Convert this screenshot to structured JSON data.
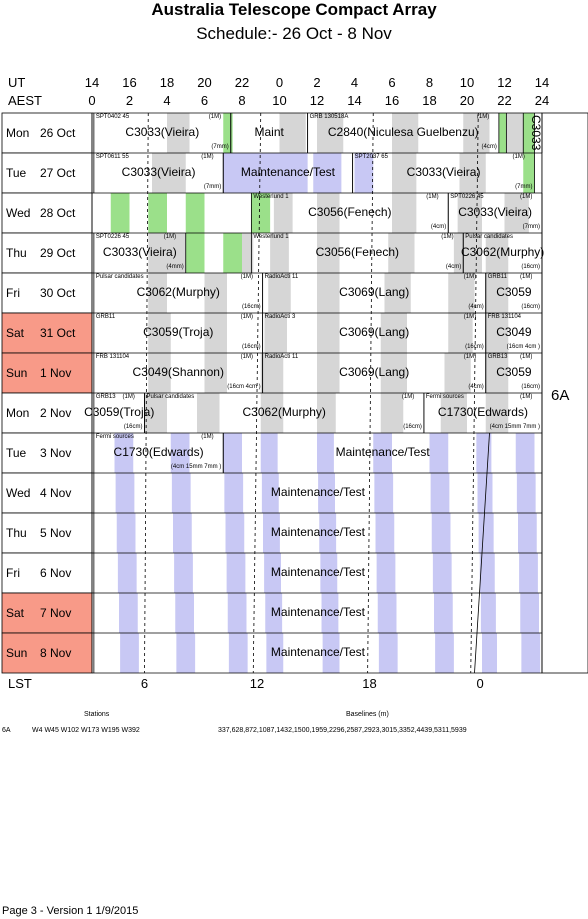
{
  "title": "Australia Telescope Compact Array",
  "subtitle": "Schedule:- 26 Oct - 8  Nov",
  "axis": {
    "ut_label": "UT",
    "aest_label": "AEST",
    "lst_label": "LST",
    "ut_ticks": [
      "14",
      "16",
      "18",
      "20",
      "22",
      "0",
      "2",
      "4",
      "6",
      "8",
      "10",
      "12",
      "14"
    ],
    "aest_ticks": [
      "0",
      "2",
      "4",
      "6",
      "8",
      "10",
      "12",
      "14",
      "16",
      "18",
      "20",
      "22",
      "24"
    ],
    "lst_ticks": [
      "6",
      "12",
      "18",
      "0"
    ]
  },
  "days": [
    {
      "wd": "Mon",
      "date": "26 Oct",
      "weekend": false
    },
    {
      "wd": "Tue",
      "date": "27 Oct",
      "weekend": false
    },
    {
      "wd": "Wed",
      "date": "28 Oct",
      "weekend": false
    },
    {
      "wd": "Thu",
      "date": "29 Oct",
      "weekend": false
    },
    {
      "wd": "Fri",
      "date": "30 Oct",
      "weekend": false
    },
    {
      "wd": "Sat",
      "date": "31 Oct",
      "weekend": true
    },
    {
      "wd": "Sun",
      "date": " 1  Nov",
      "weekend": true
    },
    {
      "wd": "Mon",
      "date": " 2  Nov",
      "weekend": false
    },
    {
      "wd": "Tue",
      "date": " 3  Nov",
      "weekend": false
    },
    {
      "wd": "Wed",
      "date": " 4  Nov",
      "weekend": false
    },
    {
      "wd": "Thu",
      "date": " 5  Nov",
      "weekend": false
    },
    {
      "wd": "Fri",
      "date": " 6  Nov",
      "weekend": false
    },
    {
      "wd": "Sat",
      "date": " 7  Nov",
      "weekend": true
    },
    {
      "wd": "Sun",
      "date": " 8  Nov",
      "weekend": true
    }
  ],
  "blocks": [
    {
      "id": "C3033",
      "label": "C3033(Vieira)",
      "note": "SPT0402 45",
      "band": "(1M)",
      "rx": "(7mm)"
    },
    {
      "id": "Maint",
      "label": "Maint"
    },
    {
      "id": "C2840",
      "label": "C2840(Niculesa Guelbenzu)",
      "note": "GRB 130518A",
      "band": "(1M)",
      "rx": "(4cm)"
    },
    {
      "id": "C3033v",
      "label": "C3033"
    },
    {
      "id": "C3033b",
      "label": "C3033(Vieira)",
      "note": "SPT0611 55",
      "band": "(1M)",
      "rx": "(7mm)"
    },
    {
      "id": "MT27",
      "label": "Maintenance/Test"
    },
    {
      "id": "C3033c",
      "label": "C3033(Vieira)",
      "note": "SPT2037 65",
      "band": "(1M)",
      "rx": "(7mm)"
    },
    {
      "id": "C3056a",
      "label": "C3056(Fenech)",
      "note": "Westerlund 1",
      "band": "(1M)",
      "rx": "(4cm)"
    },
    {
      "id": "C3033d",
      "label": "C3033(Vieira)",
      "note": "SPT0226 45",
      "band": "(1M)",
      "rx": "(7mm)"
    },
    {
      "id": "C3033e",
      "label": "C3033(Vieira)",
      "note": "SPT0226 45",
      "band": "(1M)",
      "rx": "(4mm)"
    },
    {
      "id": "C3056b",
      "label": "C3056(Fenech)",
      "note": "Westerlund 1",
      "band": "(1M)",
      "rx": "(4cm)"
    },
    {
      "id": "C3062a",
      "label": "C3062(Murphy)",
      "note": "Pulsar candidates",
      "rx": "(16cm)"
    },
    {
      "id": "C3062b",
      "label": "C3062(Murphy)",
      "note": "Pulsar candidates",
      "band": "(1M)",
      "rx": "(16cm)"
    },
    {
      "id": "C3069a",
      "label": "C3069(Lang)",
      "note": "RadioActi 11",
      "band": "(1M)",
      "rx": "(4cm)"
    },
    {
      "id": "C3059a",
      "label": "C3059",
      "note": "GRB11",
      "band": "(1M)",
      "rx": "(16cm)"
    },
    {
      "id": "C3059b",
      "label": "C3059(Troja)",
      "note": "GRB11",
      "band": "(1M)",
      "rx": "(16cm)"
    },
    {
      "id": "C3069b",
      "label": "C3069(Lang)",
      "note": "RadioActi 3",
      "band": "(1M)",
      "rx": "(16cm)"
    },
    {
      "id": "C3049a",
      "label": "C3049",
      "note": "FRB 131104",
      "rx": "(16cm 4cm )"
    },
    {
      "id": "C3049b",
      "label": "C3049(Shannon)",
      "note": "FRB 131104",
      "band": "(1M)",
      "rx": "(16cm 4cm )"
    },
    {
      "id": "C3069c",
      "label": "C3069(Lang)",
      "note": "RadioActi 11",
      "band": "(1M)",
      "rx": "(4cm)"
    },
    {
      "id": "C3059c",
      "label": "C3059",
      "note": "GRB13",
      "band": "(1M)",
      "rx": "(16cm)"
    },
    {
      "id": "C3059d",
      "label": "C3059(Troja)",
      "note": "GRB13",
      "band": "(1M)",
      "rx": "(16cm)"
    },
    {
      "id": "C3062c",
      "label": "C3062(Murphy)",
      "note": "Pulsar candidates",
      "band": "(1M)",
      "rx": "(16cm)"
    },
    {
      "id": "C1730a",
      "label": "C1730(Edwards)",
      "note": "Fermi sources",
      "band": "(1M)",
      "rx": "(4cm 15mm 7mm )"
    },
    {
      "id": "C1730b",
      "label": "C1730(Edwards)",
      "note": "Fermi sources",
      "band": "(1M)",
      "rx": "(4cm 15mm 7mm )"
    },
    {
      "id": "MT3",
      "label": "Maintenance/Test"
    },
    {
      "id": "MT4",
      "label": "Maintenance/Test"
    },
    {
      "id": "MT5",
      "label": "Maintenance/Test"
    },
    {
      "id": "MT6",
      "label": "Maintenance/Test"
    },
    {
      "id": "MT7",
      "label": "Maintenance/Test"
    },
    {
      "id": "MT8",
      "label": "Maintenance/Test"
    }
  ],
  "config": "6A",
  "footer": {
    "stations_heading": "Stations",
    "baselines_heading": "Baselines (m)",
    "config": "6A",
    "stations": "W4 W45 W102 W173 W195 W392",
    "baselines": "337,628,872,1087,1432,1500,1959,2296,2587,2923,3015,3352,4439,5311,5939",
    "page": "Page 3 - Version 1  1/9/2015"
  },
  "colors": {
    "weekend": "#f89a88",
    "green": "#9be08a",
    "gray": "#d6d6d6",
    "lilac": "#c8c8f4"
  }
}
